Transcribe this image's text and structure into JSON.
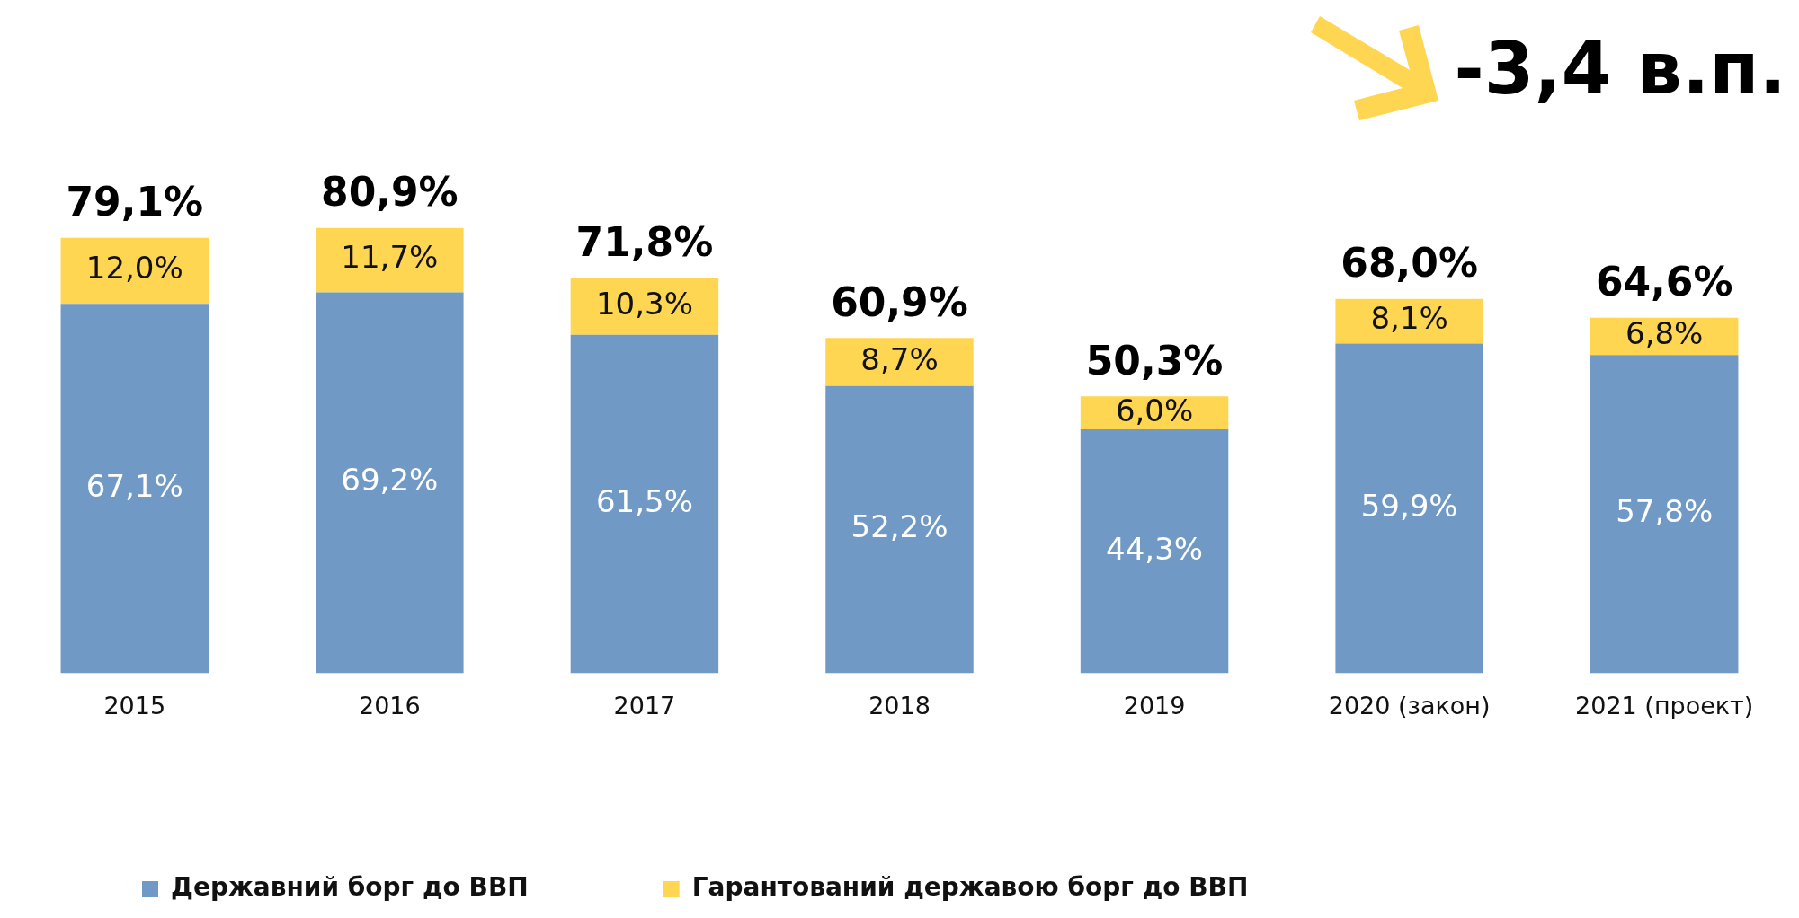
{
  "chart_data": {
    "type": "bar",
    "stacked": true,
    "categories": [
      "2015",
      "2016",
      "2017",
      "2018",
      "2019",
      "2020 (закон)",
      "2021 (проект)"
    ],
    "series": [
      {
        "name": "Державний борг до ВВП",
        "color": "#7099c5",
        "values": [
          67.1,
          69.2,
          61.5,
          52.2,
          44.3,
          59.9,
          57.8
        ],
        "value_labels": [
          "67,1%",
          "69,2%",
          "61,5%",
          "52,2%",
          "44,3%",
          "59,9%",
          "57,8%"
        ]
      },
      {
        "name": "Гарантований державою борг до ВВП",
        "color": "#ffd651",
        "values": [
          12.0,
          11.7,
          10.3,
          8.7,
          6.0,
          8.1,
          6.8
        ],
        "value_labels": [
          "12,0%",
          "11,7%",
          "10,3%",
          "8,7%",
          "6,0%",
          "8,1%",
          "6,8%"
        ]
      }
    ],
    "totals": [
      "79,1%",
      "80,9%",
      "71,8%",
      "60,9%",
      "50,3%",
      "68,0%",
      "64,6%"
    ],
    "annotations": [
      "-3,4 в.п."
    ],
    "legend": "bottom",
    "grid": false,
    "tick_labels": "x"
  }
}
